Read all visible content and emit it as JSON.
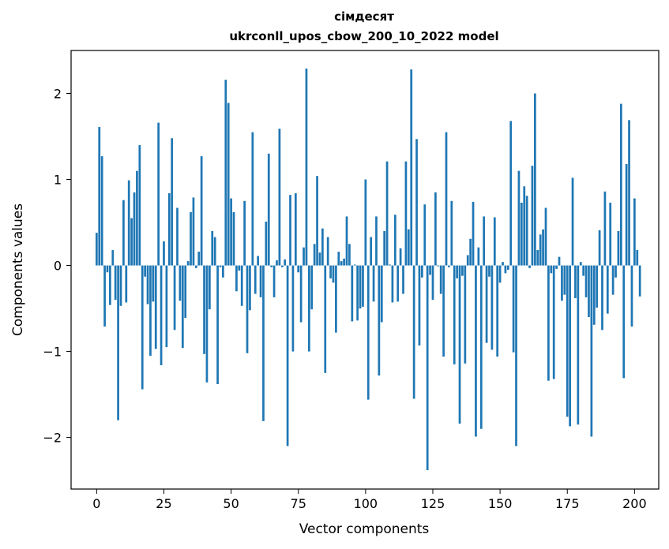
{
  "chart_data": {
    "type": "bar",
    "title": "сімдесят",
    "subtitle": "ukrconll_upos_cbow_200_10_2022 model",
    "xlabel": "Vector components",
    "ylabel": "Components values",
    "xlim": [
      -9.5,
      209
    ],
    "ylim": [
      -2.6,
      2.5
    ],
    "x_ticks": [
      0,
      25,
      50,
      75,
      100,
      125,
      150,
      175,
      200
    ],
    "x_tick_labels": [
      "0",
      "25",
      "50",
      "75",
      "100",
      "125",
      "150",
      "175",
      "200"
    ],
    "y_ticks": [
      -2,
      -1,
      0,
      1,
      2
    ],
    "y_tick_labels": [
      "−2",
      "−1",
      "0",
      "1",
      "2"
    ],
    "grid": false,
    "bar_color": "#1f77b4",
    "values": [
      0.38,
      1.61,
      1.27,
      -0.71,
      -0.08,
      -0.46,
      0.18,
      -0.4,
      -1.8,
      -0.47,
      0.76,
      -0.43,
      0.99,
      0.55,
      0.85,
      1.1,
      1.4,
      -1.44,
      -0.13,
      -0.45,
      -1.05,
      -0.42,
      -0.97,
      1.66,
      -1.16,
      0.28,
      -0.95,
      0.84,
      1.48,
      -0.75,
      0.67,
      -0.41,
      -0.96,
      -0.61,
      0.05,
      0.62,
      0.79,
      -0.03,
      0.16,
      1.27,
      -1.03,
      -1.36,
      -0.51,
      0.4,
      0.33,
      -1.38,
      -0.02,
      -0.14,
      2.16,
      1.89,
      0.78,
      0.62,
      -0.3,
      -0.06,
      -0.47,
      0.75,
      -1.02,
      -0.52,
      1.55,
      -0.33,
      0.11,
      -0.37,
      -1.81,
      0.51,
      1.3,
      -0.02,
      -0.37,
      0.06,
      1.59,
      -0.02,
      0.07,
      -2.1,
      0.82,
      -1.0,
      0.84,
      -0.08,
      -0.66,
      0.21,
      2.29,
      -1.0,
      -0.51,
      0.25,
      1.04,
      0.15,
      0.43,
      -1.25,
      0.33,
      -0.15,
      -0.2,
      -0.78,
      0.16,
      0.05,
      0.08,
      0.57,
      0.25,
      -0.65,
      0.01,
      -0.64,
      -0.5,
      -0.48,
      1.0,
      -1.56,
      0.33,
      -0.42,
      0.57,
      -1.28,
      -0.66,
      0.4,
      1.21,
      0.01,
      -0.43,
      0.59,
      -0.42,
      0.2,
      -0.33,
      1.21,
      0.42,
      2.28,
      -1.55,
      1.47,
      -0.93,
      -0.14,
      0.71,
      -2.38,
      -0.11,
      -0.4,
      0.85,
      -0.01,
      -0.33,
      -1.06,
      1.55,
      -0.02,
      0.75,
      -1.15,
      -0.15,
      -1.84,
      -0.12,
      -1.14,
      0.12,
      0.31,
      0.74,
      -1.99,
      0.21,
      -1.9,
      0.57,
      -0.9,
      -0.13,
      -0.98,
      0.56,
      -1.06,
      -0.2,
      0.04,
      -0.09,
      -0.05,
      1.68,
      -1.01,
      -2.1,
      1.1,
      0.73,
      0.92,
      0.81,
      -0.03,
      1.16,
      2.0,
      0.18,
      0.36,
      0.42,
      0.67,
      -1.34,
      -0.09,
      -1.32,
      -0.04,
      0.1,
      -0.41,
      -0.34,
      -1.76,
      -1.87,
      1.02,
      -0.38,
      -1.85,
      0.04,
      -0.12,
      -0.37,
      -0.6,
      -1.99,
      -0.69,
      -0.49,
      0.41,
      -0.75,
      0.86,
      -0.56,
      0.73,
      -0.34,
      -0.14,
      0.4,
      1.88,
      -1.31,
      1.18,
      1.69,
      -0.71,
      0.78,
      0.18,
      -0.36
    ]
  }
}
